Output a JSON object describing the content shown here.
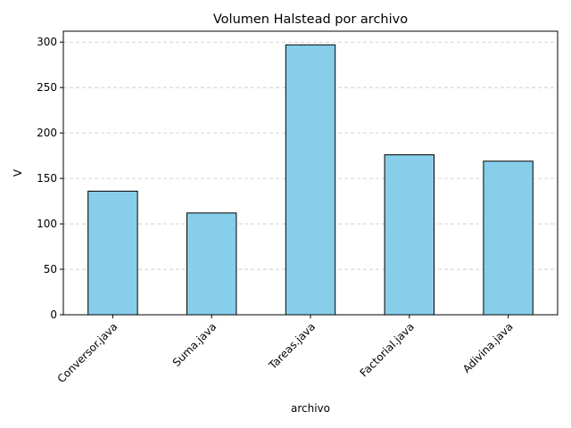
{
  "chart_data": {
    "type": "bar",
    "title": "Volumen Halstead por archivo",
    "xlabel": "archivo",
    "ylabel": "V",
    "categories": [
      "Conversor.java",
      "Suma.java",
      "Tareas.java",
      "Factorial.java",
      "Adivina.java"
    ],
    "values": [
      136,
      112,
      297,
      176,
      169
    ],
    "ylim": [
      0,
      312
    ],
    "yticks": [
      0,
      50,
      100,
      150,
      200,
      250,
      300
    ],
    "ytick_labels": [
      "0",
      "50",
      "100",
      "150",
      "200",
      "250",
      "300"
    ],
    "grid": "y-dashed",
    "legend": "none",
    "colors": {
      "bar_fill": "#87ceeb",
      "bar_edge": "#000000",
      "grid": "#c8c8c8",
      "axes": "#000000"
    }
  }
}
